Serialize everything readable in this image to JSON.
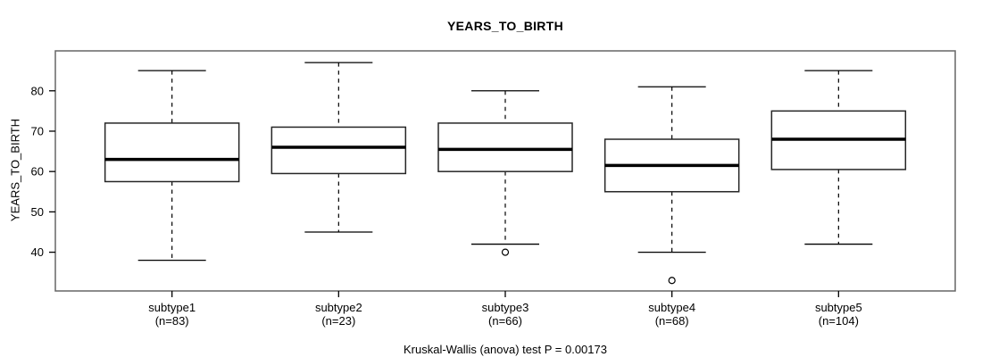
{
  "title": "YEARS_TO_BIRTH",
  "chart_data": {
    "type": "boxplot",
    "title": "YEARS_TO_BIRTH",
    "ylabel": "YEARS_TO_BIRTH",
    "xlabel": "",
    "annotation": "Kruskal-Wallis (anova) test P = 0.00173",
    "ylim": [
      30.4,
      89.9
    ],
    "yticks": [
      40,
      50,
      60,
      70,
      80
    ],
    "grid": false,
    "legend": "none",
    "categories": [
      {
        "label": "subtype1",
        "sublabel": "(n=83)",
        "n": 83,
        "whisker_low": 38,
        "q1": 57.5,
        "median": 63,
        "q3": 72,
        "whisker_high": 85,
        "outliers": []
      },
      {
        "label": "subtype2",
        "sublabel": "(n=23)",
        "n": 23,
        "whisker_low": 45,
        "q1": 59.5,
        "median": 66,
        "q3": 71,
        "whisker_high": 87,
        "outliers": []
      },
      {
        "label": "subtype3",
        "sublabel": "(n=66)",
        "n": 66,
        "whisker_low": 42,
        "q1": 60,
        "median": 65.5,
        "q3": 72,
        "whisker_high": 80,
        "outliers": [
          40
        ]
      },
      {
        "label": "subtype4",
        "sublabel": "(n=68)",
        "n": 68,
        "whisker_low": 40,
        "q1": 55,
        "median": 61.5,
        "q3": 68,
        "whisker_high": 81,
        "outliers": [
          33
        ]
      },
      {
        "label": "subtype5",
        "sublabel": "(n=104)",
        "n": 104,
        "whisker_low": 42,
        "q1": 60.5,
        "median": 68,
        "q3": 75,
        "whisker_high": 85,
        "outliers": []
      }
    ],
    "colors": {
      "line": "#000000",
      "box_border": "#262626",
      "box_fill": "#ffffff",
      "frame": "#666666",
      "background": "#ffffff"
    }
  }
}
